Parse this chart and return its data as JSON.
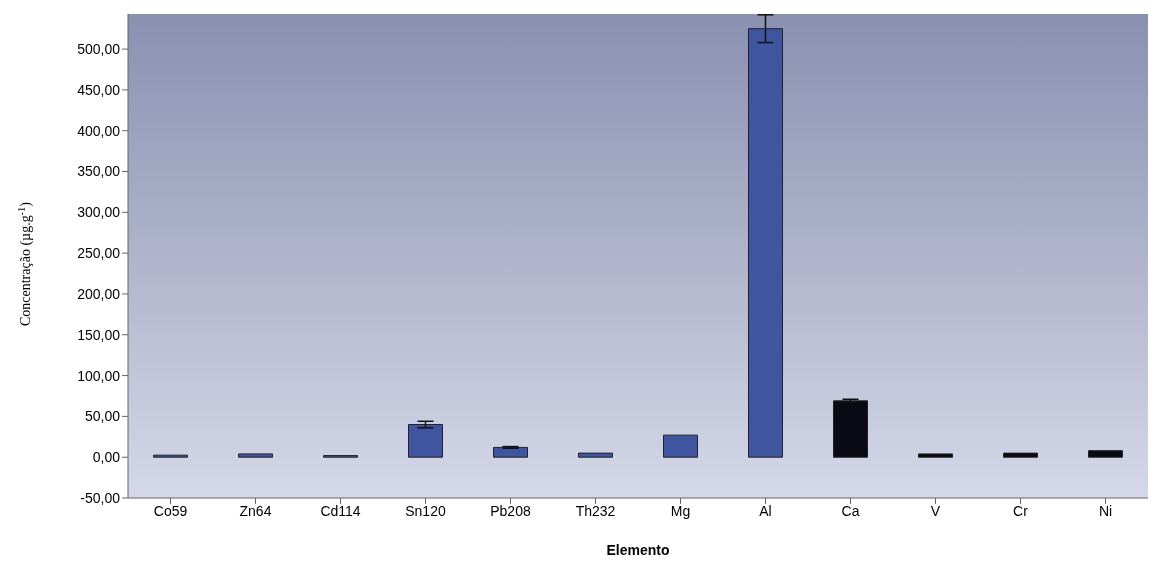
{
  "chart_data": {
    "type": "bar",
    "xlabel": "Elemento",
    "ylabel": "Concentração (µg.g$^{-1}$)",
    "categories": [
      "Co59",
      "Zn64",
      "Cd114",
      "Sn120",
      "Pb208",
      "Th232",
      "Mg",
      "Al",
      "Ca",
      "V",
      "Cr",
      "Ni"
    ],
    "values": [
      2.5,
      4,
      2,
      40,
      12,
      5,
      27,
      525,
      69,
      4,
      5,
      8
    ],
    "errors": [
      null,
      null,
      null,
      4,
      1,
      null,
      null,
      17,
      2,
      null,
      null,
      null
    ],
    "colors": [
      "#3f55a0",
      "#3f55a0",
      "#3f55a0",
      "#3f55a0",
      "#3f55a0",
      "#3f55a0",
      "#3f55a0",
      "#3f55a0",
      "#0a0a14",
      "#0a0a14",
      "#0a0a14",
      "#0a0a14"
    ],
    "ylim": [
      -50,
      543
    ],
    "yticks": [
      {
        "value": -50,
        "label": "-50,00"
      },
      {
        "value": 0,
        "label": "0,00"
      },
      {
        "value": 50,
        "label": "50,00"
      },
      {
        "value": 100,
        "label": "100,00"
      },
      {
        "value": 150,
        "label": "150,00"
      },
      {
        "value": 200,
        "label": "200,00"
      },
      {
        "value": 250,
        "label": "250,00"
      },
      {
        "value": 300,
        "label": "300,00"
      },
      {
        "value": 350,
        "label": "350,00"
      },
      {
        "value": 400,
        "label": "400,00"
      },
      {
        "value": 450,
        "label": "450,00"
      },
      {
        "value": 500,
        "label": "500,00"
      }
    ],
    "grid": false,
    "legend": false
  }
}
